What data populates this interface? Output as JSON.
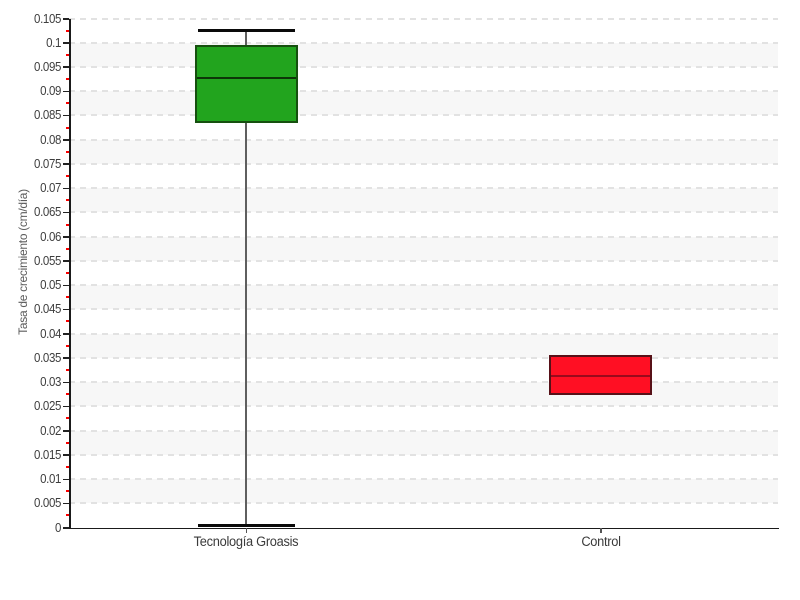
{
  "chart_data": {
    "type": "boxplot",
    "title": "",
    "xlabel": "",
    "ylabel": "Tasa de crecimiento (cm/día)",
    "categories": [
      "Tecnología Groasis",
      "Control"
    ],
    "series": [
      {
        "name": "Tecnología Groasis",
        "min": 0.0005,
        "q1": 0.0835,
        "median": 0.0927,
        "q3": 0.0995,
        "max": 0.1025,
        "fill": "#22A41E",
        "stroke": "#16500F",
        "median_color": "#0D3508"
      },
      {
        "name": "Control",
        "min": 0.0273,
        "q1": 0.0273,
        "median": 0.0313,
        "q3": 0.0355,
        "max": 0.0355,
        "fill": "#FF0F23",
        "stroke": "#571118",
        "median_color": "#9A0A1C"
      }
    ],
    "ylim": [
      0,
      0.105
    ],
    "y_major_step": 0.005,
    "y_minor_step": 0.0025,
    "y_tick_labels": [
      "0",
      "0.005",
      "0.01",
      "0.015",
      "0.02",
      "0.025",
      "0.03",
      "0.035",
      "0.04",
      "0.045",
      "0.05",
      "0.055",
      "0.06",
      "0.065",
      "0.07",
      "0.075",
      "0.08",
      "0.085",
      "0.09",
      "0.095",
      "0.1",
      "0.105"
    ],
    "grid": "dashed horizontal, alternating background bands",
    "legend": "none",
    "band_colors": [
      "#ffffff",
      "#f7f7f7"
    ],
    "axis_color": "#1a1a1a",
    "major_tick_color": "#222222",
    "minor_tick_color": "#fa0000",
    "category_tick_color": "#555555",
    "whisker_color": "#5f5f5f",
    "whisker_cap_color": "#0a0a0a",
    "tick_label_color": "#3d3d3d",
    "axis_title_color": "#5c5c5c"
  }
}
